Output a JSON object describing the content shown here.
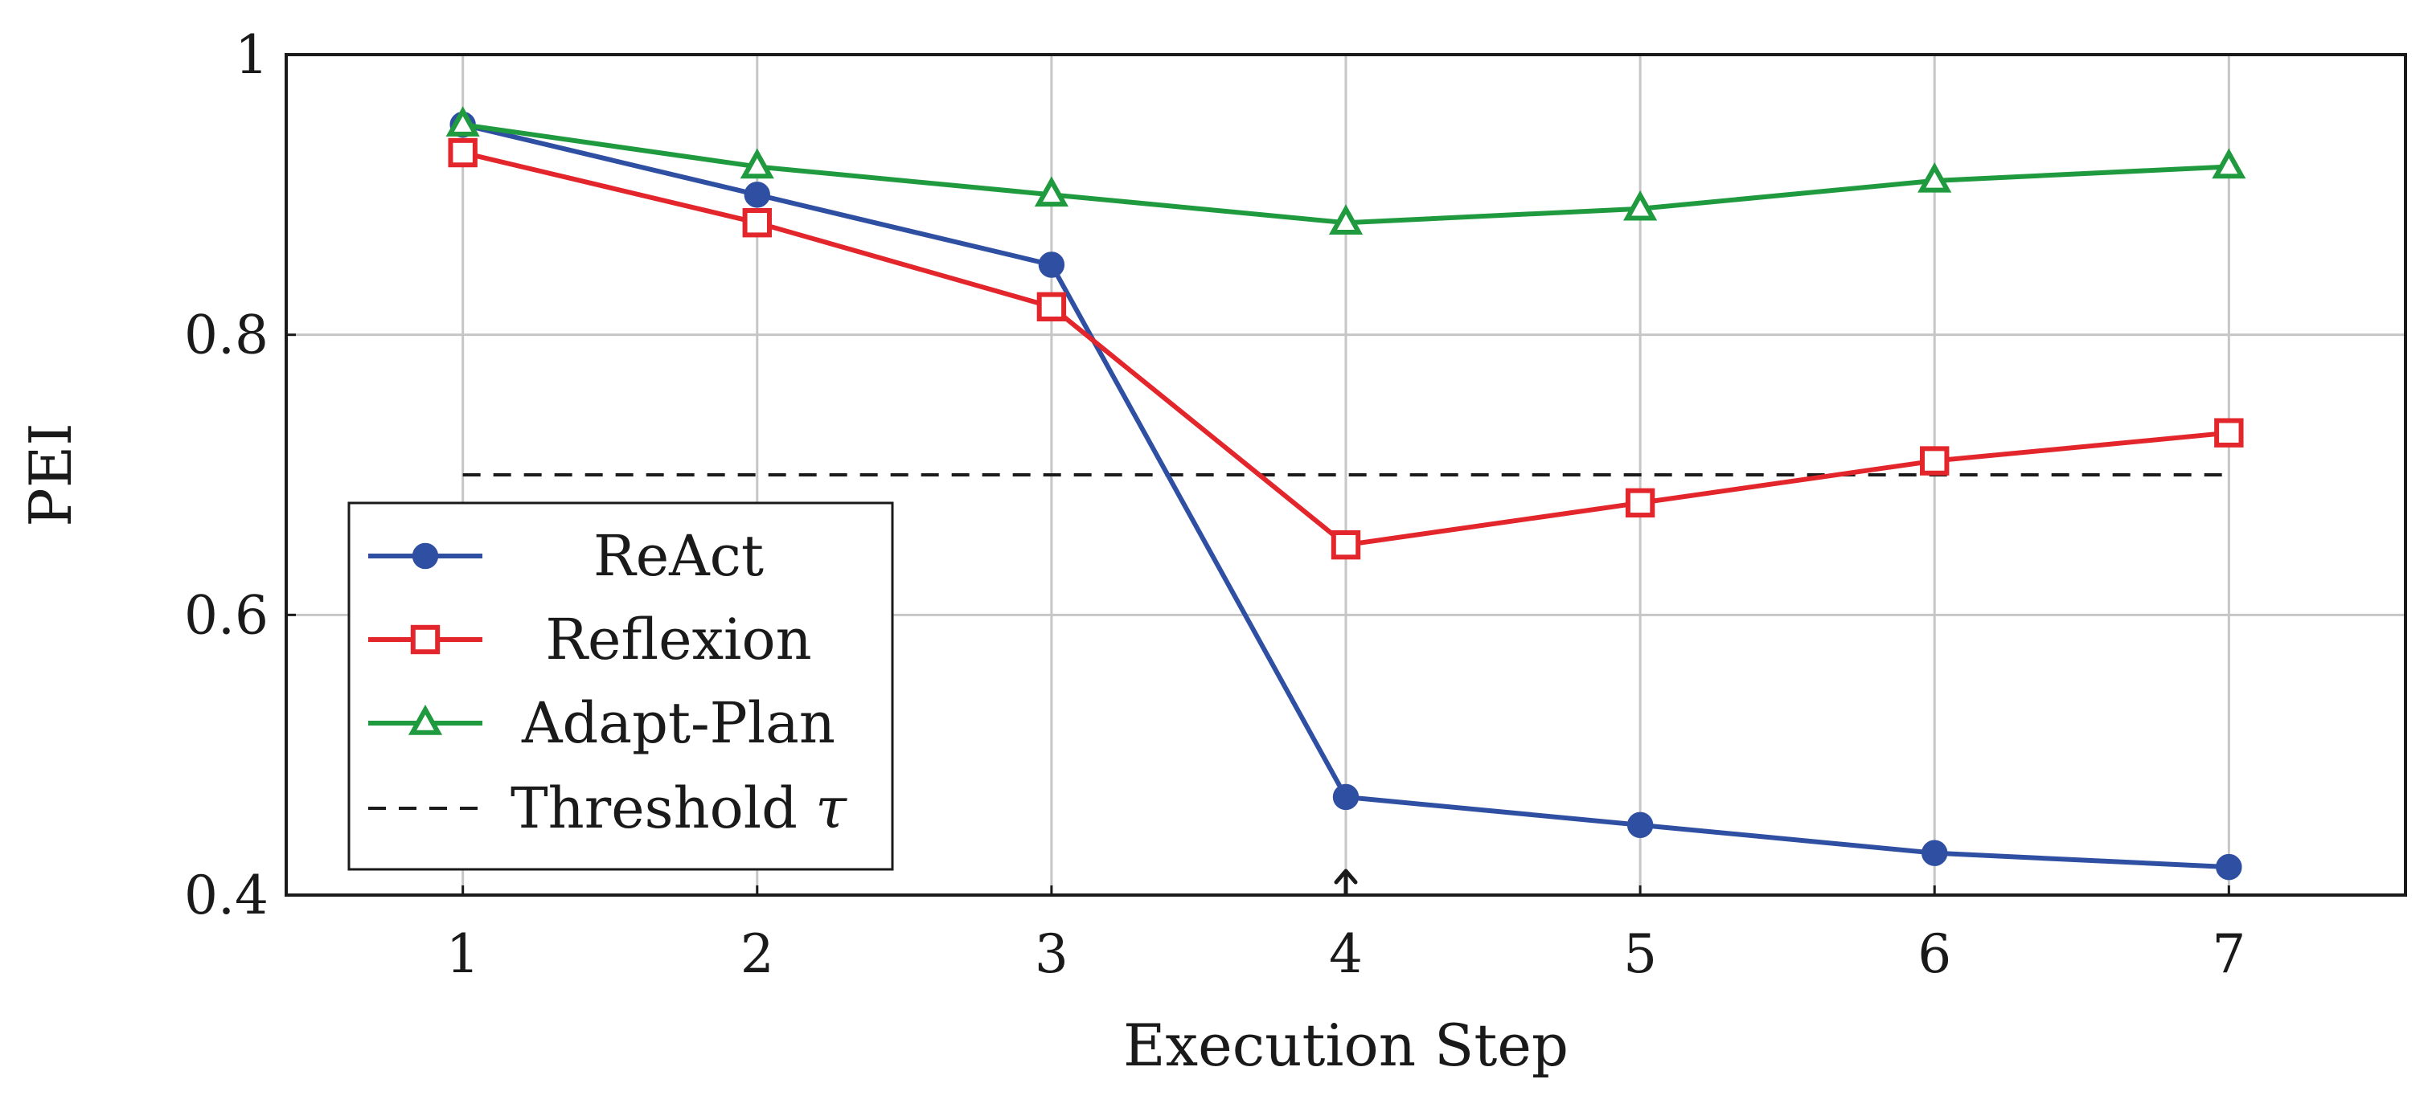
{
  "chart_data": {
    "type": "line",
    "title": "",
    "xlabel": "Execution Step",
    "ylabel": "PEI",
    "x": [
      1,
      2,
      3,
      4,
      5,
      6,
      7
    ],
    "xlim": [
      0.4,
      7.6
    ],
    "ylim": [
      0.4,
      1.0
    ],
    "xticks": [
      1,
      2,
      3,
      4,
      5,
      6,
      7
    ],
    "yticks": [
      0.4,
      0.6,
      0.8,
      1.0
    ],
    "xtick_labels": [
      "1",
      "2",
      "3",
      "4",
      "5",
      "6",
      "7"
    ],
    "ytick_labels": [
      "0.4",
      "0.6",
      "0.8",
      "1"
    ],
    "grid": true,
    "legend_position": "bottom-left",
    "series": [
      {
        "name": "ReAct",
        "values": [
          0.95,
          0.9,
          0.85,
          0.47,
          0.45,
          0.43,
          0.42
        ],
        "color": "#2f4fa2",
        "marker": "filled-circle"
      },
      {
        "name": "Reflexion",
        "values": [
          0.93,
          0.88,
          0.82,
          0.65,
          0.68,
          0.71,
          0.73
        ],
        "color": "#e3262b",
        "marker": "open-square"
      },
      {
        "name": "Adapt-Plan",
        "values": [
          0.95,
          0.92,
          0.9,
          0.88,
          0.89,
          0.91,
          0.92
        ],
        "color": "#1f9a3e",
        "marker": "open-triangle"
      }
    ],
    "threshold": {
      "label": "Threshold",
      "symbol": "τ",
      "value": 0.7,
      "x_range": [
        1,
        7
      ],
      "color": "#1a1a1a",
      "style": "dashed"
    },
    "annotation": {
      "type": "arrow",
      "x": 4,
      "description": "upward arrow at step 4"
    }
  }
}
